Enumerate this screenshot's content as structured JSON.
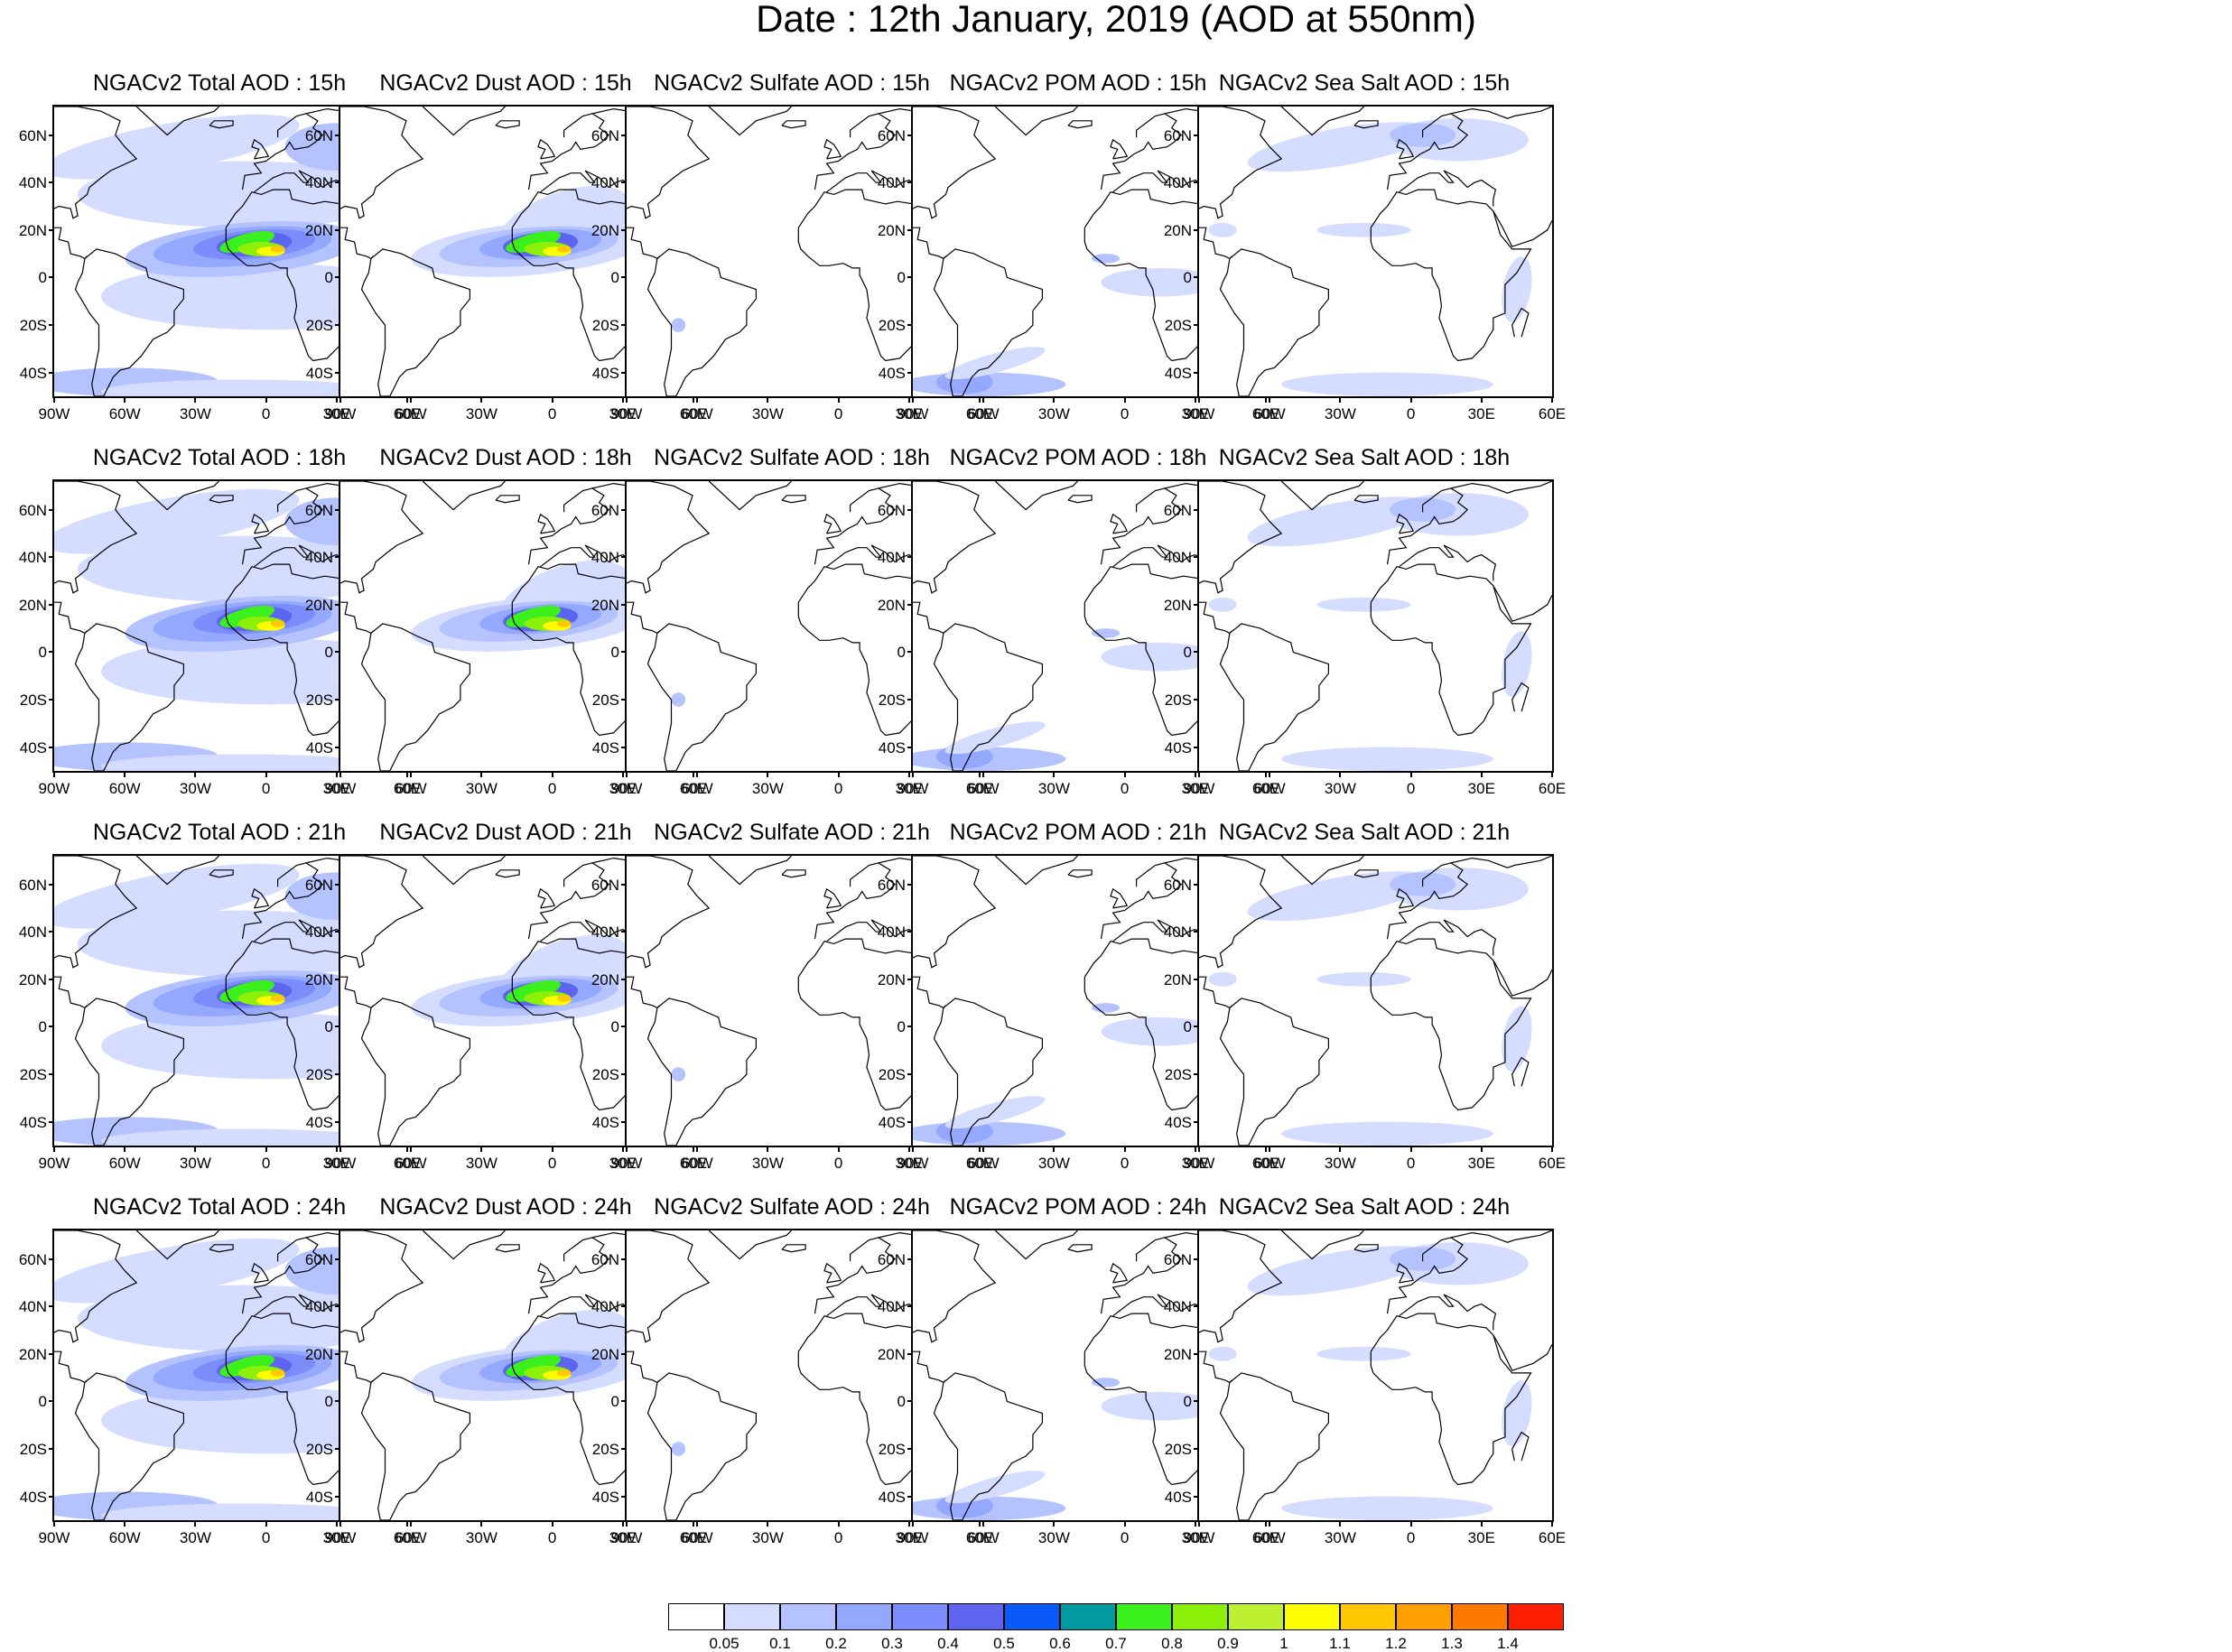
{
  "title": "Date : 12th January, 2019 (AOD at 550nm)",
  "lat_ticks": [
    "60N",
    "40N",
    "20N",
    "0",
    "20S",
    "40S"
  ],
  "lat_values": [
    60,
    40,
    20,
    0,
    -20,
    -40
  ],
  "lon_ticks": [
    "90W",
    "60W",
    "30W",
    "0",
    "30E",
    "60E"
  ],
  "lon_values": [
    -90,
    -60,
    -30,
    0,
    30,
    60
  ],
  "map_extent": {
    "lon": [
      -90,
      60
    ],
    "lat": [
      -50,
      72
    ]
  },
  "panels": [
    {
      "title": "NGACv2 Total AOD : 15h",
      "species": "total"
    },
    {
      "title": "NGACv2 Dust AOD : 15h",
      "species": "dust"
    },
    {
      "title": "NGACv2 Sulfate AOD : 15h",
      "species": "sulfate"
    },
    {
      "title": "NGACv2 POM AOD : 15h",
      "species": "pom"
    },
    {
      "title": "NGACv2 Sea Salt AOD : 15h",
      "species": "seasalt"
    },
    {
      "title": "NGACv2 Total AOD : 18h",
      "species": "total"
    },
    {
      "title": "NGACv2 Dust AOD : 18h",
      "species": "dust"
    },
    {
      "title": "NGACv2 Sulfate AOD : 18h",
      "species": "sulfate"
    },
    {
      "title": "NGACv2 POM AOD : 18h",
      "species": "pom"
    },
    {
      "title": "NGACv2 Sea Salt AOD : 18h",
      "species": "seasalt"
    },
    {
      "title": "NGACv2 Total AOD : 21h",
      "species": "total"
    },
    {
      "title": "NGACv2 Dust AOD : 21h",
      "species": "dust"
    },
    {
      "title": "NGACv2 Sulfate AOD : 21h",
      "species": "sulfate"
    },
    {
      "title": "NGACv2 POM AOD : 21h",
      "species": "pom"
    },
    {
      "title": "NGACv2 Sea Salt AOD : 21h",
      "species": "seasalt"
    },
    {
      "title": "NGACv2 Total AOD : 24h",
      "species": "total"
    },
    {
      "title": "NGACv2 Dust AOD : 24h",
      "species": "dust"
    },
    {
      "title": "NGACv2 Sulfate AOD : 24h",
      "species": "sulfate"
    },
    {
      "title": "NGACv2 POM AOD : 24h",
      "species": "pom"
    },
    {
      "title": "NGACv2 Sea Salt  AOD : 24h",
      "species": "seasalt"
    }
  ],
  "colorbar": {
    "colors": [
      "#ffffff",
      "#d4dcff",
      "#b4c2ff",
      "#94a8ff",
      "#7c8cfa",
      "#5c64f0",
      "#0a5af5",
      "#009aa0",
      "#3cf01e",
      "#8cf00a",
      "#bef032",
      "#ffff00",
      "#ffc800",
      "#ffa000",
      "#ff7800",
      "#ff1e00"
    ],
    "labels": [
      "0.05",
      "0.1",
      "0.2",
      "0.3",
      "0.4",
      "0.5",
      "0.6",
      "0.7",
      "0.8",
      "0.9",
      "1",
      "1.1",
      "1.2",
      "1.3",
      "1.4"
    ]
  }
}
